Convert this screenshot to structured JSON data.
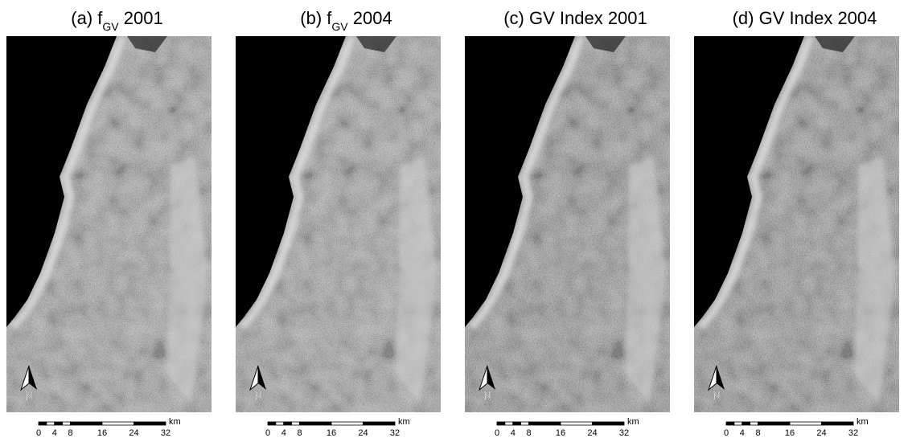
{
  "panels": [
    {
      "title": [
        {
          "text": "(a) f"
        },
        {
          "text": "GV",
          "sub": true
        },
        {
          "text": " 2001"
        }
      ]
    },
    {
      "title": [
        {
          "text": "(b) f"
        },
        {
          "text": "GV",
          "sub": true
        },
        {
          "text": " 2004"
        }
      ]
    },
    {
      "title": [
        {
          "text": "(c) GV Index 2001"
        }
      ]
    },
    {
      "title": [
        {
          "text": "(d) GV Index 2004"
        }
      ]
    }
  ],
  "north_label": "N",
  "scale": {
    "ticks": [
      0,
      4,
      8,
      16,
      24,
      32
    ],
    "unit": "km"
  }
}
